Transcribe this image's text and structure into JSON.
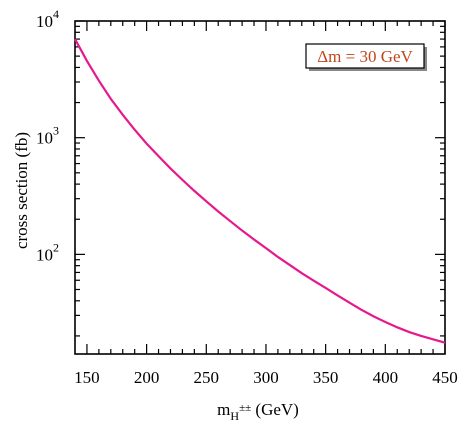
{
  "chart_data": {
    "type": "line",
    "title": "",
    "xlabel_base": "m",
    "xlabel_sub": "H",
    "xlabel_sup": "±±",
    "xlabel_unit": " (GeV)",
    "ylabel": "cross section (fb)",
    "xlim": [
      140,
      450
    ],
    "ylim": [
      14,
      10000
    ],
    "yscale": "log",
    "grid": false,
    "legend_placement": "top-right",
    "x_ticks": [
      150,
      200,
      250,
      300,
      350,
      400,
      450
    ],
    "y_ticks": [
      {
        "base": "10",
        "exp": "4",
        "value": 10000
      },
      {
        "base": "10",
        "exp": "3",
        "value": 1000
      },
      {
        "base": "10",
        "exp": "2",
        "value": 100
      }
    ],
    "series": [
      {
        "annotation": "Δm = 30 GeV",
        "color": "#e6198c",
        "x": [
          140,
          150,
          160,
          170,
          180,
          190,
          200,
          210,
          220,
          230,
          240,
          250,
          260,
          270,
          280,
          290,
          300,
          310,
          320,
          330,
          340,
          350,
          360,
          370,
          380,
          390,
          400,
          410,
          420,
          430,
          440,
          450
        ],
        "y": [
          7000,
          4550,
          3080,
          2150,
          1570,
          1170,
          890,
          695,
          545,
          435,
          350,
          285,
          233,
          193,
          160,
          134,
          113,
          95,
          81,
          69,
          59.5,
          51.5,
          44.5,
          38.5,
          33.5,
          29.5,
          26.3,
          23.7,
          21.6,
          20.0,
          18.7,
          17.5
        ]
      }
    ]
  }
}
